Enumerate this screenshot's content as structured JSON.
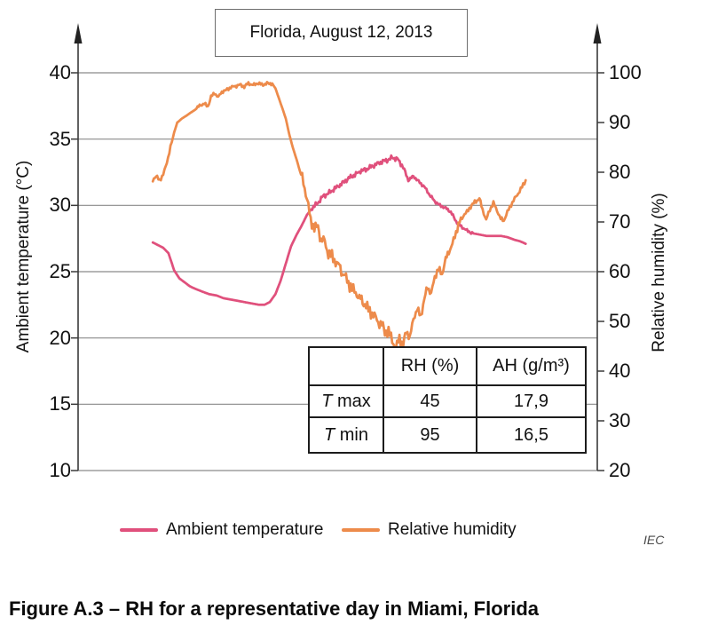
{
  "figure": {
    "credit": "IEC",
    "caption": "Figure A.3 – RH for a representative day in Miami, Florida"
  },
  "chart_data": {
    "type": "line",
    "title": "Florida, August 12, 2013",
    "x_axis": {
      "label": "",
      "note": "no x tick labels shown; x expressed as fraction of plot width",
      "range": [
        0,
        1
      ],
      "grid": false
    },
    "y_left_axis": {
      "label": "Ambient temperature (°C)",
      "range": [
        10,
        40
      ],
      "ticks": [
        40,
        35,
        30,
        25,
        20,
        15,
        10
      ],
      "grid": true
    },
    "y_right_axis": {
      "label": "Relative humidity (%)",
      "range": [
        20,
        100
      ],
      "ticks": [
        100,
        90,
        80,
        70,
        60,
        50,
        40,
        30,
        20
      ],
      "grid": false
    },
    "legend_position": "bottom",
    "series": [
      {
        "name": "Ambient temperature",
        "axis": "left",
        "unit": "°C",
        "color": "#e0507c",
        "points": [
          [
            0.144,
            27.2
          ],
          [
            0.154,
            27.0
          ],
          [
            0.164,
            26.8
          ],
          [
            0.174,
            26.4
          ],
          [
            0.185,
            25.1
          ],
          [
            0.195,
            24.5
          ],
          [
            0.205,
            24.2
          ],
          [
            0.215,
            23.9
          ],
          [
            0.226,
            23.7
          ],
          [
            0.239,
            23.5
          ],
          [
            0.253,
            23.3
          ],
          [
            0.267,
            23.2
          ],
          [
            0.28,
            23.0
          ],
          [
            0.294,
            22.9
          ],
          [
            0.308,
            22.8
          ],
          [
            0.321,
            22.7
          ],
          [
            0.335,
            22.6
          ],
          [
            0.349,
            22.5
          ],
          [
            0.359,
            22.5
          ],
          [
            0.369,
            22.7
          ],
          [
            0.38,
            23.3
          ],
          [
            0.39,
            24.3
          ],
          [
            0.4,
            25.6
          ],
          [
            0.41,
            26.9
          ],
          [
            0.421,
            27.8
          ],
          [
            0.431,
            28.5
          ],
          [
            0.441,
            29.3
          ],
          [
            0.451,
            29.8
          ],
          [
            0.462,
            30.2
          ],
          [
            0.472,
            30.7
          ],
          [
            0.482,
            30.9
          ],
          [
            0.492,
            31.2
          ],
          [
            0.503,
            31.5
          ],
          [
            0.513,
            31.8
          ],
          [
            0.523,
            32.1
          ],
          [
            0.533,
            32.3
          ],
          [
            0.544,
            32.6
          ],
          [
            0.554,
            32.7
          ],
          [
            0.564,
            32.9
          ],
          [
            0.574,
            33.1
          ],
          [
            0.585,
            33.3
          ],
          [
            0.595,
            33.4
          ],
          [
            0.605,
            33.6
          ],
          [
            0.615,
            33.5
          ],
          [
            0.626,
            32.9
          ],
          [
            0.636,
            31.9
          ],
          [
            0.646,
            32.2
          ],
          [
            0.656,
            31.8
          ],
          [
            0.667,
            31.4
          ],
          [
            0.677,
            30.8
          ],
          [
            0.687,
            30.3
          ],
          [
            0.697,
            30.0
          ],
          [
            0.708,
            29.8
          ],
          [
            0.718,
            29.5
          ],
          [
            0.728,
            28.8
          ],
          [
            0.738,
            28.4
          ],
          [
            0.749,
            28.1
          ],
          [
            0.759,
            27.9
          ],
          [
            0.773,
            27.8
          ],
          [
            0.786,
            27.7
          ],
          [
            0.8,
            27.7
          ],
          [
            0.814,
            27.7
          ],
          [
            0.827,
            27.6
          ],
          [
            0.841,
            27.4
          ],
          [
            0.851,
            27.3
          ],
          [
            0.862,
            27.1
          ]
        ],
        "jitter": [
          [
            0.45,
            0.63,
            0.2
          ],
          [
            0.63,
            0.76,
            0.12
          ]
        ]
      },
      {
        "name": "Relative humidity",
        "axis": "right",
        "unit": "%",
        "color": "#ed8b4b",
        "points": [
          [
            0.144,
            78.5
          ],
          [
            0.15,
            79.2
          ],
          [
            0.157,
            78.4
          ],
          [
            0.164,
            79.5
          ],
          [
            0.171,
            82.0
          ],
          [
            0.178,
            85.0
          ],
          [
            0.185,
            88.0
          ],
          [
            0.191,
            90.0
          ],
          [
            0.2,
            90.8
          ],
          [
            0.209,
            91.4
          ],
          [
            0.217,
            92.0
          ],
          [
            0.226,
            92.6
          ],
          [
            0.234,
            93.4
          ],
          [
            0.243,
            93.8
          ],
          [
            0.25,
            93.2
          ],
          [
            0.256,
            95.2
          ],
          [
            0.263,
            95.9
          ],
          [
            0.27,
            95.1
          ],
          [
            0.277,
            96.2
          ],
          [
            0.285,
            96.5
          ],
          [
            0.294,
            97.1
          ],
          [
            0.303,
            97.3
          ],
          [
            0.311,
            97.6
          ],
          [
            0.32,
            97.2
          ],
          [
            0.328,
            97.9
          ],
          [
            0.337,
            97.5
          ],
          [
            0.345,
            97.9
          ],
          [
            0.356,
            97.6
          ],
          [
            0.366,
            97.9
          ],
          [
            0.374,
            97.8
          ],
          [
            0.38,
            96.9
          ],
          [
            0.386,
            95.1
          ],
          [
            0.393,
            93.0
          ],
          [
            0.4,
            90.8
          ],
          [
            0.407,
            87.5
          ],
          [
            0.414,
            84.8
          ],
          [
            0.421,
            82.5
          ],
          [
            0.427,
            80.3
          ],
          [
            0.434,
            78.0
          ],
          [
            0.441,
            74.5
          ],
          [
            0.448,
            70.5
          ],
          [
            0.455,
            68.5
          ],
          [
            0.462,
            69.5
          ],
          [
            0.468,
            65.8
          ],
          [
            0.475,
            66.8
          ],
          [
            0.482,
            62.8
          ],
          [
            0.489,
            64.0
          ],
          [
            0.496,
            61.0
          ],
          [
            0.503,
            62.2
          ],
          [
            0.509,
            58.7
          ],
          [
            0.516,
            59.8
          ],
          [
            0.523,
            56.2
          ],
          [
            0.53,
            57.4
          ],
          [
            0.537,
            54.4
          ],
          [
            0.544,
            55.6
          ],
          [
            0.55,
            52.6
          ],
          [
            0.557,
            53.8
          ],
          [
            0.564,
            50.8
          ],
          [
            0.571,
            52.0
          ],
          [
            0.578,
            49.0
          ],
          [
            0.585,
            50.2
          ],
          [
            0.591,
            47.2
          ],
          [
            0.598,
            48.5
          ],
          [
            0.605,
            45.8
          ],
          [
            0.612,
            44.8
          ],
          [
            0.619,
            46.5
          ],
          [
            0.626,
            45.3
          ],
          [
            0.632,
            48.0
          ],
          [
            0.639,
            46.8
          ],
          [
            0.646,
            50.5
          ],
          [
            0.653,
            52.5
          ],
          [
            0.66,
            51.0
          ],
          [
            0.667,
            54.5
          ],
          [
            0.673,
            57.0
          ],
          [
            0.68,
            55.5
          ],
          [
            0.687,
            59.0
          ],
          [
            0.694,
            60.5
          ],
          [
            0.701,
            59.5
          ],
          [
            0.708,
            62.5
          ],
          [
            0.714,
            64.0
          ],
          [
            0.721,
            65.5
          ],
          [
            0.728,
            68.0
          ],
          [
            0.735,
            70.0
          ],
          [
            0.742,
            71.3
          ],
          [
            0.749,
            72.0
          ],
          [
            0.756,
            73.1
          ],
          [
            0.764,
            74.0
          ],
          [
            0.773,
            74.7
          ],
          [
            0.779,
            72.5
          ],
          [
            0.786,
            70.4
          ],
          [
            0.793,
            72.5
          ],
          [
            0.8,
            73.8
          ],
          [
            0.807,
            72.3
          ],
          [
            0.814,
            70.6
          ],
          [
            0.82,
            70.3
          ],
          [
            0.827,
            72.0
          ],
          [
            0.834,
            73.5
          ],
          [
            0.841,
            74.7
          ],
          [
            0.848,
            75.8
          ],
          [
            0.855,
            77.0
          ],
          [
            0.862,
            78.4
          ]
        ],
        "jitter": [
          [
            0.144,
            0.18,
            0.4
          ],
          [
            0.23,
            0.375,
            0.35
          ],
          [
            0.43,
            0.63,
            1.2
          ],
          [
            0.63,
            0.74,
            0.8
          ],
          [
            0.74,
            0.862,
            0.45
          ]
        ]
      }
    ]
  },
  "inset_table": {
    "headers": [
      "",
      "RH (%)",
      "AH (g/m³)"
    ],
    "rows": [
      {
        "label_sym": "T",
        "label_rest": " max",
        "rh": "45",
        "ah": "17,9"
      },
      {
        "label_sym": "T",
        "label_rest": " min",
        "rh": "95",
        "ah": "16,5"
      }
    ]
  }
}
